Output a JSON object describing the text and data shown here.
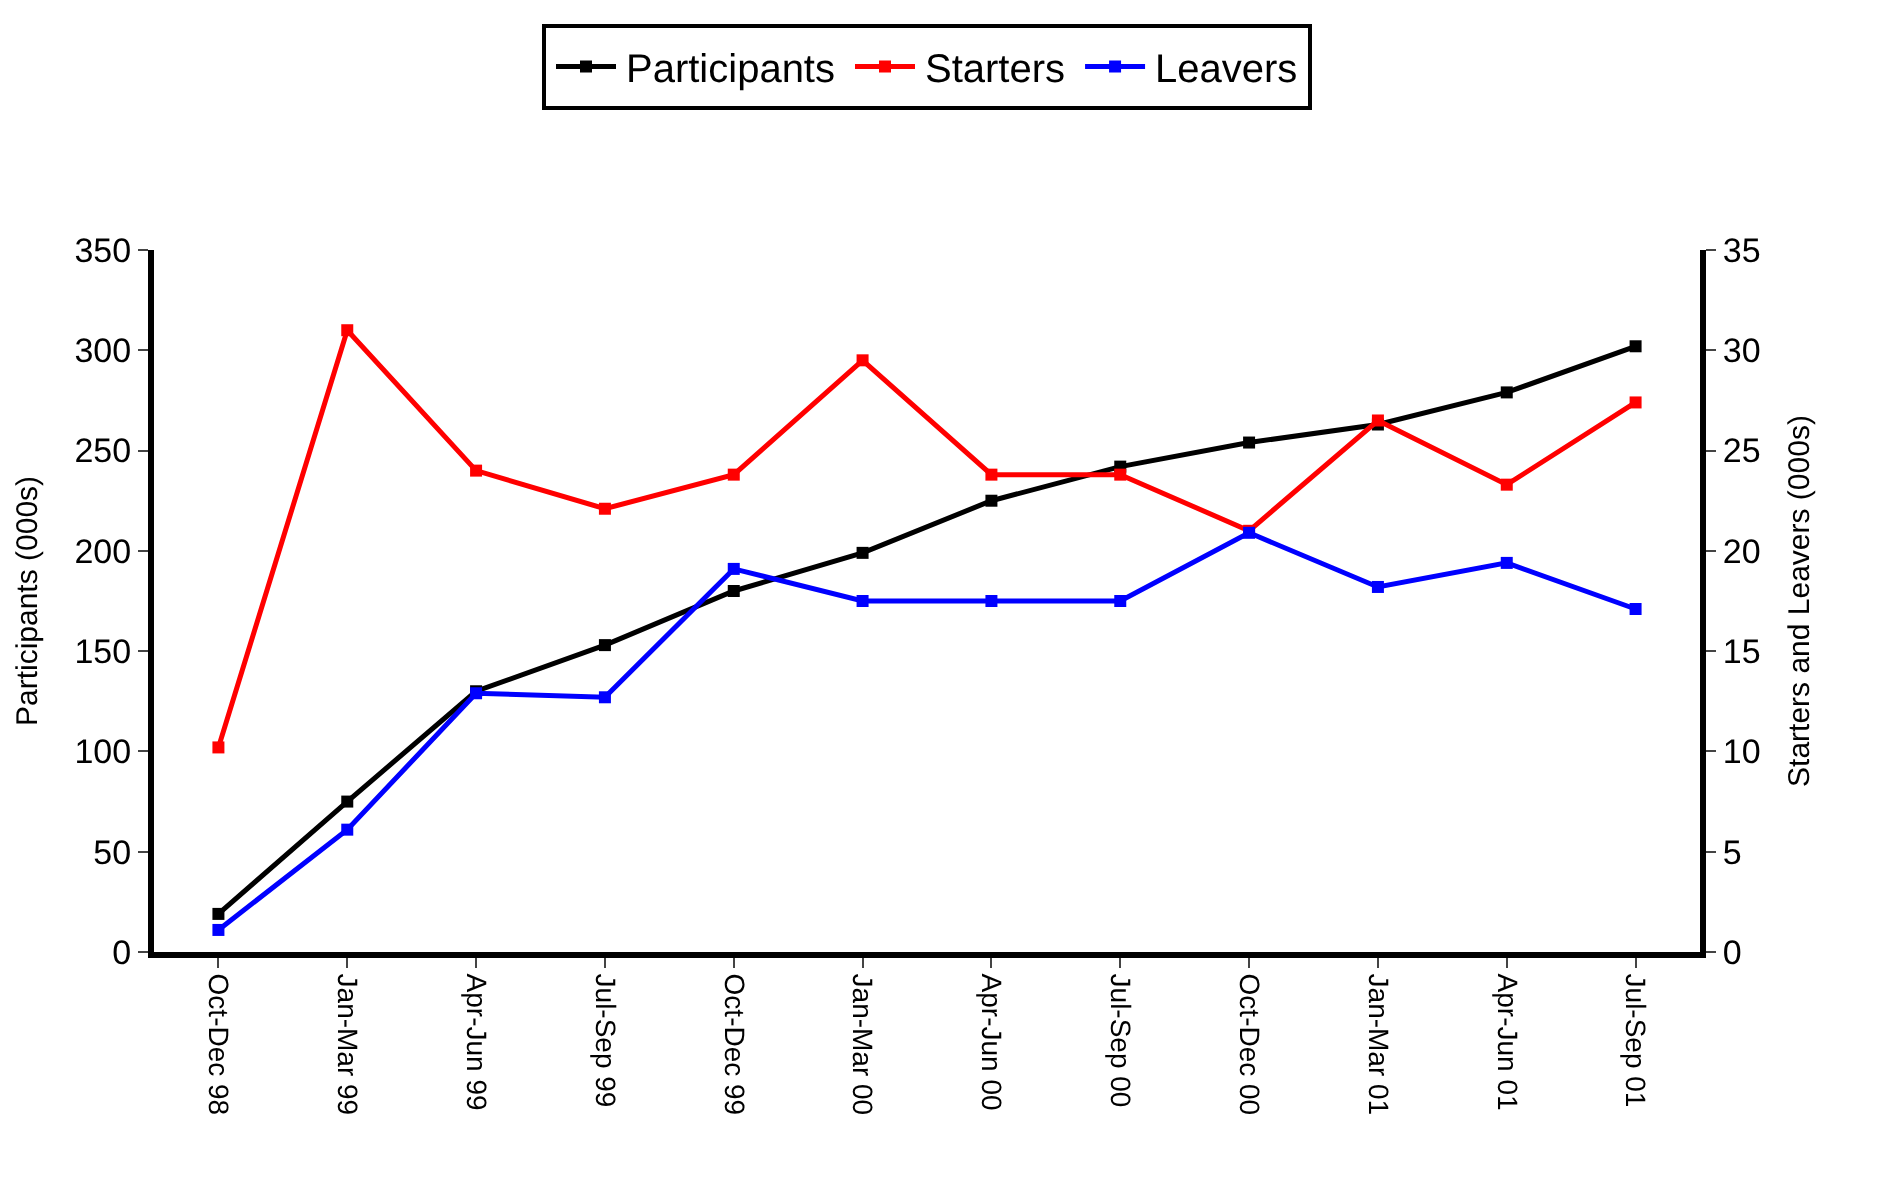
{
  "chart_data": {
    "type": "line",
    "categories": [
      "Oct-Dec 98",
      "Jan-Mar 99",
      "Apr-Jun 99",
      "Jul-Sep 99",
      "Oct-Dec 99",
      "Jan-Mar 00",
      "Apr-Jun 00",
      "Jul-Sep 00",
      "Oct-Dec 00",
      "Jan-Mar 01",
      "Apr-Jun 01",
      "Jul-Sep 01"
    ],
    "series": [
      {
        "name": "Participants",
        "color": "#000000",
        "values": [
          19,
          75,
          130,
          153,
          180,
          199,
          225,
          242,
          254,
          263,
          279,
          302
        ]
      },
      {
        "name": "Starters",
        "color": "#ff0000",
        "axis": "y2",
        "values": [
          10.2,
          31,
          24,
          22.1,
          23.8,
          29.5,
          23.8,
          23.8,
          21,
          26.5,
          23.3,
          27.4
        ]
      },
      {
        "name": "Leavers",
        "color": "#0000ff",
        "axis": "y2",
        "values": [
          1.1,
          6.1,
          12.9,
          12.7,
          19.1,
          17.5,
          17.5,
          17.5,
          20.9,
          18.2,
          19.4,
          17.1
        ]
      }
    ],
    "ylabel": "Participants (000s)",
    "y2label": "Starters and Leavers (000s)",
    "ylim": [
      0,
      350
    ],
    "yticks": [
      0,
      50,
      100,
      150,
      200,
      250,
      300,
      350
    ],
    "y2lim": [
      0,
      35
    ],
    "y2ticks": [
      0,
      5,
      10,
      15,
      20,
      25,
      30,
      35
    ],
    "legend": "top",
    "marker": "square",
    "line_style": "solid"
  }
}
